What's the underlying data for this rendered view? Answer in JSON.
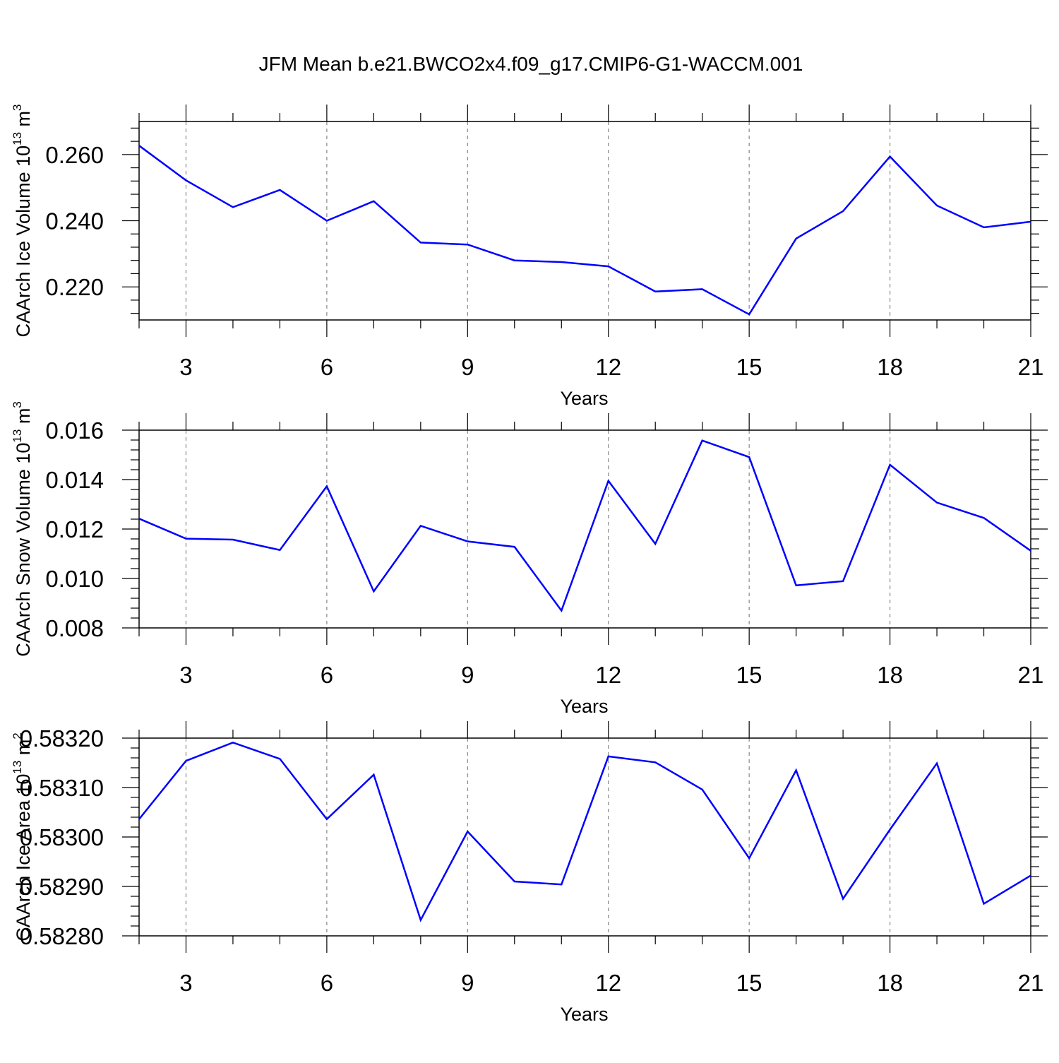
{
  "chart_data": [
    {
      "type": "line",
      "title": "JFM Mean b.e21.BWCO2x4.f09_g17.CMIP6-G1-WACCM.001",
      "xlabel": "Years",
      "ylabel": {
        "main": "CAArch Ice Volume 10",
        "exp": "13",
        "unit": " m",
        "unit_exp": "3"
      },
      "xlim": [
        2,
        21
      ],
      "ylim": [
        0.21,
        0.27
      ],
      "yticks": [
        0.22,
        0.24,
        0.26
      ],
      "ytick_labels": [
        "0.220",
        "0.240",
        "0.260"
      ],
      "xticks": [
        3,
        6,
        9,
        12,
        15,
        18,
        21
      ],
      "xtick_labels": [
        "3",
        "6",
        "9",
        "12",
        "15",
        "18",
        "21"
      ],
      "grid": "vertical dashed at major x ticks",
      "line_color": "#0000ff",
      "x": [
        2,
        3,
        4,
        5,
        6,
        7,
        8,
        9,
        10,
        11,
        12,
        13,
        14,
        15,
        16,
        17,
        18,
        19,
        20,
        21
      ],
      "values": [
        0.2627,
        0.2522,
        0.2441,
        0.2493,
        0.24,
        0.2459,
        0.2334,
        0.2328,
        0.228,
        0.2275,
        0.2262,
        0.2186,
        0.2193,
        0.2117,
        0.2346,
        0.2429,
        0.2594,
        0.2446,
        0.238,
        0.2397
      ]
    },
    {
      "type": "line",
      "xlabel": "Years",
      "ylabel": {
        "main": "CAArch Snow Volume 10",
        "exp": "13",
        "unit": " m",
        "unit_exp": "3"
      },
      "xlim": [
        2,
        21
      ],
      "ylim": [
        0.008,
        0.016
      ],
      "yticks": [
        0.008,
        0.01,
        0.012,
        0.014,
        0.016
      ],
      "ytick_labels": [
        "0.008",
        "0.010",
        "0.012",
        "0.014",
        "0.016"
      ],
      "xticks": [
        3,
        6,
        9,
        12,
        15,
        18,
        21
      ],
      "xtick_labels": [
        "3",
        "6",
        "9",
        "12",
        "15",
        "18",
        "21"
      ],
      "grid": "vertical dashed at major x ticks",
      "line_color": "#0000ff",
      "x": [
        2,
        3,
        4,
        5,
        6,
        7,
        8,
        9,
        10,
        11,
        12,
        13,
        14,
        15,
        16,
        17,
        18,
        19,
        20,
        21
      ],
      "values": [
        0.01242,
        0.01161,
        0.01157,
        0.01115,
        0.01373,
        0.00948,
        0.01213,
        0.0115,
        0.01128,
        0.0087,
        0.01395,
        0.0114,
        0.01558,
        0.01491,
        0.00972,
        0.00989,
        0.0146,
        0.01307,
        0.01245,
        0.01112
      ]
    },
    {
      "type": "line",
      "xlabel": "Years",
      "ylabel": {
        "main": "CAArch Ice Area 10",
        "exp": "13",
        "unit": " m",
        "unit_exp": "2"
      },
      "xlim": [
        2,
        21
      ],
      "ylim": [
        0.5828,
        0.5832
      ],
      "yticks": [
        0.5828,
        0.5829,
        0.583,
        0.5831,
        0.5832
      ],
      "ytick_labels": [
        "0.58280",
        "0.58290",
        "0.58300",
        "0.58310",
        "0.58320"
      ],
      "xticks": [
        3,
        6,
        9,
        12,
        15,
        18,
        21
      ],
      "xtick_labels": [
        "3",
        "6",
        "9",
        "12",
        "15",
        "18",
        "21"
      ],
      "grid": "vertical dashed at major x ticks",
      "line_color": "#0000ff",
      "x": [
        2,
        3,
        4,
        5,
        6,
        7,
        8,
        9,
        10,
        11,
        12,
        13,
        14,
        15,
        16,
        17,
        18,
        19,
        20,
        21
      ],
      "values": [
        0.583036,
        0.583154,
        0.583191,
        0.583158,
        0.583036,
        0.583126,
        0.582832,
        0.583011,
        0.58291,
        0.582904,
        0.583163,
        0.583151,
        0.583096,
        0.582957,
        0.583135,
        0.582875,
        0.583015,
        0.583149,
        0.582865,
        0.582922
      ]
    }
  ]
}
